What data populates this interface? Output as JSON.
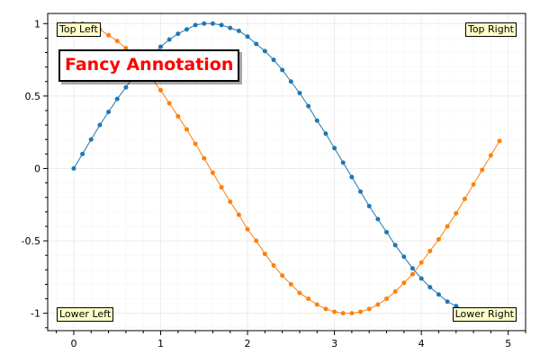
{
  "chart_data": {
    "type": "scatter",
    "title": "",
    "xlabel": "",
    "ylabel": "",
    "xlim": [
      -0.3,
      5.2
    ],
    "ylim": [
      -1.12,
      1.07
    ],
    "x_ticks": [
      0,
      1,
      2,
      3,
      4,
      5
    ],
    "y_ticks": [
      -1,
      -0.5,
      0,
      0.5,
      1
    ],
    "x_tick_labels": [
      "0",
      "1",
      "2",
      "3",
      "4",
      "5"
    ],
    "y_tick_labels": [
      "-1",
      "-0.5",
      "0",
      "0.5",
      "1"
    ],
    "grid": true,
    "legend": "none",
    "series": [
      {
        "function": "sin",
        "color": "#1f77b4",
        "x": [
          0,
          0.1,
          0.2,
          0.3,
          0.4,
          0.5,
          0.6,
          0.7,
          0.8,
          0.9,
          1,
          1.1,
          1.2,
          1.3,
          1.4,
          1.5,
          1.6,
          1.7,
          1.8,
          1.9,
          2,
          2.1,
          2.2,
          2.3,
          2.4,
          2.5,
          2.6,
          2.7,
          2.8,
          2.9,
          3,
          3.1,
          3.2,
          3.3,
          3.4,
          3.5,
          3.6,
          3.7,
          3.8,
          3.9,
          4,
          4.1,
          4.2,
          4.3,
          4.4,
          4.5,
          4.6,
          4.7,
          4.8,
          4.9
        ],
        "y": [
          0,
          0.1,
          0.2,
          0.3,
          0.39,
          0.48,
          0.56,
          0.64,
          0.72,
          0.78,
          0.84,
          0.89,
          0.93,
          0.96,
          0.99,
          1,
          1,
          0.99,
          0.97,
          0.95,
          0.91,
          0.86,
          0.81,
          0.75,
          0.68,
          0.6,
          0.52,
          0.43,
          0.33,
          0.24,
          0.14,
          0.04,
          -0.06,
          -0.16,
          -0.26,
          -0.35,
          -0.44,
          -0.53,
          -0.61,
          -0.69,
          -0.76,
          -0.82,
          -0.87,
          -0.92,
          -0.95,
          -0.98,
          -0.99,
          -1,
          -1,
          -0.98
        ]
      },
      {
        "function": "cos",
        "color": "#ff7f0e",
        "x": [
          0,
          0.1,
          0.2,
          0.3,
          0.4,
          0.5,
          0.6,
          0.7,
          0.8,
          0.9,
          1,
          1.1,
          1.2,
          1.3,
          1.4,
          1.5,
          1.6,
          1.7,
          1.8,
          1.9,
          2,
          2.1,
          2.2,
          2.3,
          2.4,
          2.5,
          2.6,
          2.7,
          2.8,
          2.9,
          3,
          3.1,
          3.2,
          3.3,
          3.4,
          3.5,
          3.6,
          3.7,
          3.8,
          3.9,
          4,
          4.1,
          4.2,
          4.3,
          4.4,
          4.5,
          4.6,
          4.7,
          4.8,
          4.9
        ],
        "y": [
          1,
          1,
          0.98,
          0.96,
          0.92,
          0.88,
          0.83,
          0.76,
          0.7,
          0.62,
          0.54,
          0.45,
          0.36,
          0.27,
          0.17,
          0.07,
          -0.03,
          -0.13,
          -0.23,
          -0.32,
          -0.42,
          -0.5,
          -0.59,
          -0.67,
          -0.74,
          -0.8,
          -0.86,
          -0.9,
          -0.94,
          -0.97,
          -0.99,
          -1,
          -1,
          -0.99,
          -0.97,
          -0.94,
          -0.9,
          -0.85,
          -0.79,
          -0.73,
          -0.65,
          -0.57,
          -0.49,
          -0.4,
          -0.31,
          -0.21,
          -0.11,
          -0.01,
          0.09,
          0.19
        ]
      }
    ],
    "annotations": {
      "top_left": "Top Left",
      "top_right": "Top Right",
      "lower_left": "Lower Left",
      "lower_right": "Lower Right",
      "fancy": "Fancy Annotation"
    },
    "colors": {
      "annotation_background": "#ffffc8",
      "fancy_text": "#ff0000",
      "grid": "#ececec",
      "axis": "#000000"
    }
  }
}
